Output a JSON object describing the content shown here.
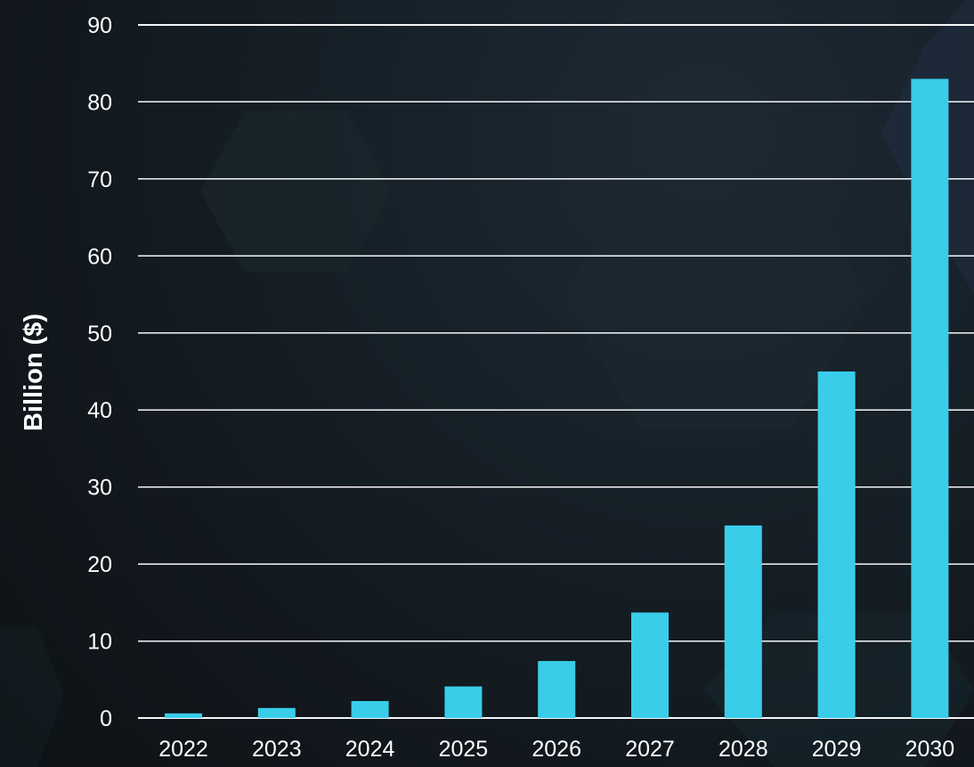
{
  "chart_data": {
    "type": "bar",
    "title": "",
    "xlabel": "",
    "ylabel": "Billion ($)",
    "categories": [
      "2022",
      "2023",
      "2024",
      "2025",
      "2026",
      "2027",
      "2028",
      "2029",
      "2030"
    ],
    "values": [
      0.6,
      1.3,
      2.2,
      4.1,
      7.4,
      13.7,
      25,
      45,
      83
    ],
    "ylim": [
      0,
      90
    ],
    "yticks": [
      0,
      10,
      20,
      30,
      40,
      50,
      60,
      70,
      80,
      90
    ],
    "grid": true,
    "legend": "none",
    "colors": {
      "bar": "#39cdea",
      "grid": "#f4f6f8",
      "text": "#ffffff",
      "background": "#131b21"
    }
  }
}
